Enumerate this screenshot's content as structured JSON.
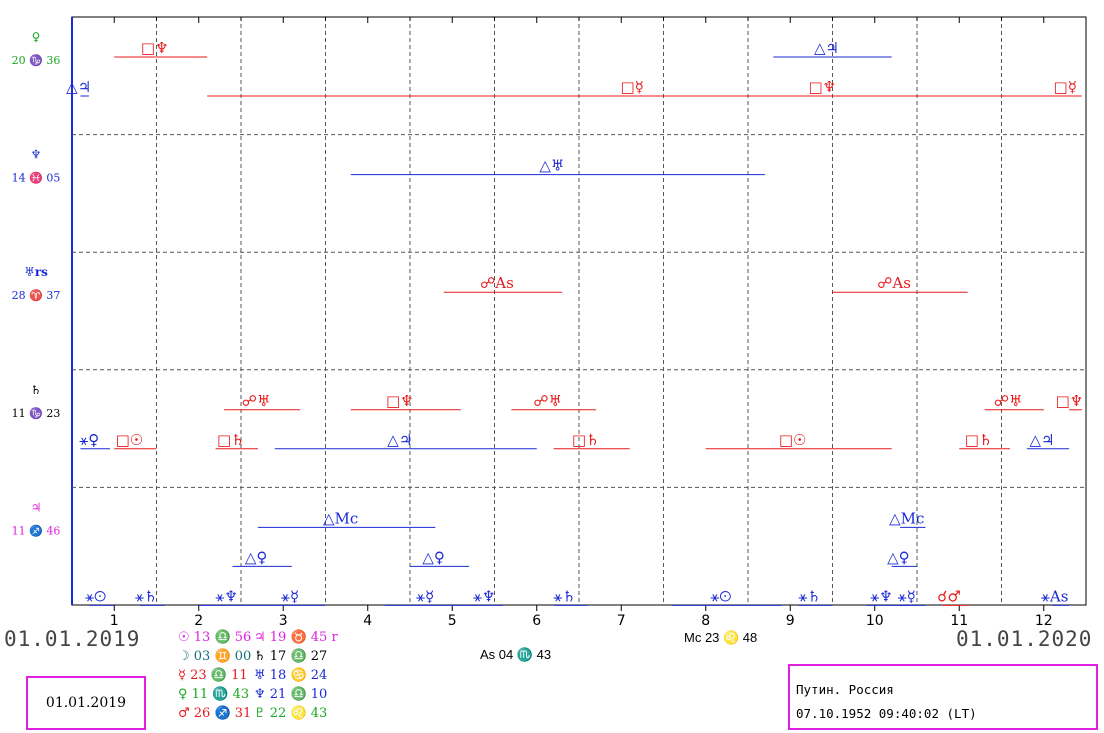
{
  "colors": {
    "aspect_hard": "#e81a1a",
    "aspect_soft": "#1a2ad6",
    "grid": "#555555",
    "box_border": "#e020e0",
    "green": "#16a820",
    "magenta": "#e020e0",
    "red": "#e81a1a",
    "blue": "#1a2ad6",
    "teal": "#16707c"
  },
  "header": {
    "start_date": "01.01.2019",
    "end_date": "01.01.2020"
  },
  "current_date": "01.01.2019",
  "info": {
    "name": "Путин. Россия",
    "datetime": "07.10.1952 09:40:02 (LT)"
  },
  "angles": {
    "asc": "As 04 ♏ 43",
    "mc": "Mc 23 ♌ 48"
  },
  "positions_left": [
    {
      "text": "☉ 13 ♎ 56",
      "color": "#e020e0"
    },
    {
      "text": "☽ 03 ♊ 00",
      "color": "#16707c"
    },
    {
      "text": "☿ 23 ♎ 11",
      "color": "#e81a1a"
    },
    {
      "text": "♀ 11 ♏ 43",
      "color": "#16a820"
    },
    {
      "text": "♂ 26 ♐ 31",
      "color": "#e81a1a"
    }
  ],
  "positions_right": [
    {
      "text": "♃ 19 ♉ 45 r",
      "color": "#e020e0"
    },
    {
      "text": "♄ 17 ♎ 27",
      "color": "#000000"
    },
    {
      "text": "♅ 18 ♋ 24",
      "color": "#1a2ad6"
    },
    {
      "text": "♆ 21 ♎ 10",
      "color": "#1a2ad6"
    },
    {
      "text": "♇ 22 ♌ 43",
      "color": "#16a820"
    }
  ],
  "chart_data": {
    "type": "timeline",
    "x_axis": {
      "min": 0.5,
      "max": 12.5,
      "ticks": [
        "1",
        "2",
        "3",
        "4",
        "5",
        "6",
        "7",
        "8",
        "9",
        "10",
        "11",
        "12"
      ]
    },
    "rows": [
      {
        "planet_glyph": "♀",
        "planet_color": "#16a820",
        "position": "20 ♑ 36",
        "aspects": [
          {
            "start": 1.0,
            "end": 2.1,
            "label": "□♆",
            "type": "hard",
            "level": 1
          },
          {
            "start": 8.8,
            "end": 10.2,
            "label": "△♃",
            "type": "soft",
            "level": 1
          },
          {
            "start": 0.6,
            "end": 0.7,
            "label": "△♃",
            "type": "soft",
            "level": 2
          },
          {
            "start": 2.1,
            "end": 12.3,
            "label": "□☿",
            "type": "hard",
            "level": 2
          },
          {
            "start": 9.2,
            "end": 9.7,
            "label": "□♆",
            "type": "hard",
            "level": 2
          },
          {
            "start": 12.2,
            "end": 12.45,
            "label": "□☿",
            "type": "hard",
            "level": 2
          }
        ]
      },
      {
        "planet_glyph": "♆",
        "planet_color": "#1a2ad6",
        "position": "14 ♓ 05",
        "aspects": [
          {
            "start": 3.8,
            "end": 8.7,
            "label": "△♅",
            "type": "soft",
            "level": 1
          }
        ]
      },
      {
        "planet_glyph": "♅rs",
        "planet_color": "#1a2ad6",
        "position": "28 ♈ 37",
        "aspects": [
          {
            "start": 4.9,
            "end": 6.3,
            "label": "☍As",
            "type": "hard",
            "level": 1
          },
          {
            "start": 9.5,
            "end": 11.1,
            "label": "☍As",
            "type": "hard",
            "level": 1
          }
        ]
      },
      {
        "planet_glyph": "♄",
        "planet_color": "#000000",
        "position": "11 ♑ 23",
        "aspects": [
          {
            "start": 2.3,
            "end": 3.2,
            "label": "☍♅",
            "type": "hard",
            "level": 1
          },
          {
            "start": 3.8,
            "end": 5.1,
            "label": "□♆",
            "type": "hard",
            "level": 1
          },
          {
            "start": 5.7,
            "end": 6.7,
            "label": "☍♅",
            "type": "hard",
            "level": 1
          },
          {
            "start": 11.3,
            "end": 12.0,
            "label": "☍♅",
            "type": "hard",
            "level": 1
          },
          {
            "start": 12.3,
            "end": 12.45,
            "label": "□♆",
            "type": "hard",
            "level": 1
          },
          {
            "start": 0.6,
            "end": 0.95,
            "label": "⚹♀",
            "type": "soft",
            "level": 2
          },
          {
            "start": 1.0,
            "end": 1.5,
            "label": "□☉",
            "type": "hard",
            "level": 2
          },
          {
            "start": 2.2,
            "end": 2.7,
            "label": "□♄",
            "type": "hard",
            "level": 2
          },
          {
            "start": 2.9,
            "end": 6.0,
            "label": "△♃",
            "type": "soft",
            "level": 2
          },
          {
            "start": 6.2,
            "end": 7.1,
            "label": "□♄",
            "type": "hard",
            "level": 2
          },
          {
            "start": 8.0,
            "end": 10.2,
            "label": "□☉",
            "type": "hard",
            "level": 2
          },
          {
            "start": 11.0,
            "end": 11.6,
            "label": "□♄",
            "type": "hard",
            "level": 2
          },
          {
            "start": 11.8,
            "end": 12.3,
            "label": "△♃",
            "type": "soft",
            "level": 2
          }
        ]
      },
      {
        "planet_glyph": "♃",
        "planet_color": "#e020e0",
        "position": "11 ♐ 46",
        "aspects": [
          {
            "start": 2.7,
            "end": 4.8,
            "label": "△Mc",
            "type": "soft",
            "level": 1
          },
          {
            "start": 10.3,
            "end": 10.6,
            "label": "△Mc",
            "type": "soft",
            "level": 1
          },
          {
            "start": 2.4,
            "end": 3.1,
            "label": "△♀",
            "type": "soft",
            "level": 2
          },
          {
            "start": 4.5,
            "end": 5.2,
            "label": "△♀",
            "type": "soft",
            "level": 2
          },
          {
            "start": 10.2,
            "end": 10.5,
            "label": "△♀",
            "type": "soft",
            "level": 2
          },
          {
            "start": 0.7,
            "end": 1.0,
            "label": "⚹☉",
            "type": "soft",
            "level": 3
          },
          {
            "start": 1.3,
            "end": 1.6,
            "label": "⚹♄",
            "type": "soft",
            "level": 3
          },
          {
            "start": 2.0,
            "end": 2.8,
            "label": "⚹♆",
            "type": "soft",
            "level": 3
          },
          {
            "start": 2.8,
            "end": 3.5,
            "label": "⚹☿",
            "type": "soft",
            "level": 3
          },
          {
            "start": 4.2,
            "end": 5.3,
            "label": "⚹☿",
            "type": "soft",
            "level": 3
          },
          {
            "start": 5.3,
            "end": 5.6,
            "label": "⚹♆",
            "type": "soft",
            "level": 3
          },
          {
            "start": 6.2,
            "end": 6.6,
            "label": "⚹♄",
            "type": "soft",
            "level": 3
          },
          {
            "start": 7.6,
            "end": 8.9,
            "label": "⚹☉",
            "type": "soft",
            "level": 3
          },
          {
            "start": 9.1,
            "end": 9.5,
            "label": "⚹♄",
            "type": "soft",
            "level": 3
          },
          {
            "start": 9.9,
            "end": 10.4,
            "label": "⚹♆",
            "type": "soft",
            "level": 3
          },
          {
            "start": 10.3,
            "end": 10.6,
            "label": "⚹☿",
            "type": "soft",
            "level": 3
          },
          {
            "start": 10.8,
            "end": 11.1,
            "label": "☌♂",
            "type": "hard",
            "level": 3
          },
          {
            "start": 12.1,
            "end": 12.3,
            "label": "⚹As",
            "type": "soft",
            "level": 3
          }
        ]
      }
    ]
  }
}
